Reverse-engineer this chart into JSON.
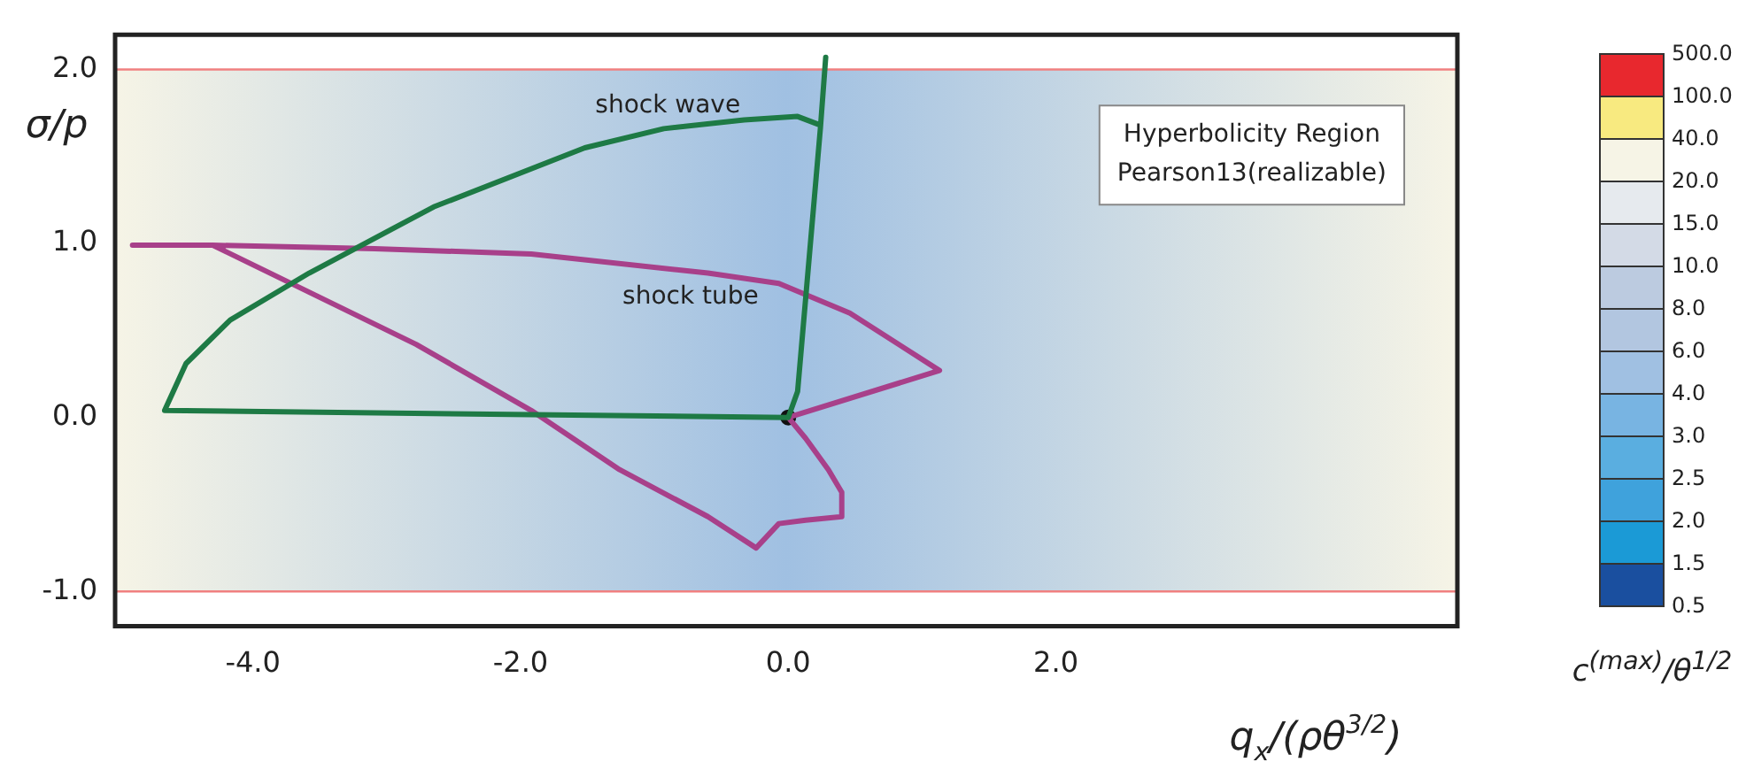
{
  "chart_data": [
    {
      "type": "line",
      "xlabel": "q$_{x}$/(ρθ$^{3/2}$)",
      "ylabel": "σ/p",
      "annotations": [
        "shock wave",
        "shock tube",
        "Hyperbolicity Region\nPearson13(realizable)"
      ],
      "series": [
        {
          "color": "#1e7a45",
          "x": [
            0.28,
            0.24,
            0.07,
            0,
            -4.66,
            -4.5,
            -4.17,
            -3.58,
            -2.65,
            -1.52,
            -0.93,
            -0.33,
            0.07,
            0.24
          ],
          "values": [
            2.07,
            1.66,
            0.15,
            0,
            0.04,
            0.31,
            0.56,
            0.83,
            1.21,
            1.55,
            1.66,
            1.71,
            1.73,
            1.68
          ]
        },
        {
          "color": "#a8408a",
          "x": [
            -4.9,
            -4.3,
            -3.09,
            -1.92,
            -0.6,
            -0.07,
            0.46,
            1.13,
            0,
            0.13,
            0.3,
            0.4,
            0.4,
            0.13,
            -0.07,
            -0.24,
            -0.6,
            -1.26,
            -1.92,
            -2.78,
            -3.58,
            -4.3
          ],
          "values": [
            0.99,
            0.99,
            0.97,
            0.94,
            0.83,
            0.77,
            0.6,
            0.27,
            0,
            -0.12,
            -0.3,
            -0.43,
            -0.57,
            -0.59,
            -0.61,
            -0.75,
            -0.57,
            -0.3,
            0.04,
            0.42,
            0.72,
            0.99
          ]
        },
        {
          "type": "scatter",
          "color": "#111111",
          "x": [
            0
          ],
          "values": [
            0
          ]
        }
      ],
      "bands": [
        {
          "axis": "y",
          "from": -1,
          "to": 2,
          "color": "#a0c0e2"
        }
      ],
      "ref_lines": [
        {
          "axis": "y",
          "value": -1,
          "color": "#f08080"
        },
        {
          "axis": "y",
          "value": 2,
          "color": "#f08080"
        }
      ],
      "xlim": [
        -5.03,
        5
      ],
      "ylim": [
        -1.2,
        2.2
      ],
      "xticks": [
        {
          "value": -4,
          "label": "-4.0"
        },
        {
          "value": -2,
          "label": "-2.0"
        },
        {
          "value": 0,
          "label": "0.0"
        },
        {
          "value": 2,
          "label": "2.0"
        }
      ],
      "yticks": [
        {
          "value": -1,
          "label": "-1.0"
        },
        {
          "value": 0,
          "label": "0.0"
        },
        {
          "value": 1,
          "label": "1.0"
        },
        {
          "value": 2,
          "label": "2.0"
        }
      ],
      "grid": false,
      "legend": false
    },
    {
      "type": "other",
      "clabel": "c$^{(max)}$/θ$^{1/2}$",
      "annotations": [
        "500.0",
        "100.0",
        "40.0",
        "20.0",
        "15.0",
        "10.0",
        "8.0",
        "6.0",
        "4.0",
        "3.0",
        "2.5",
        "2.0",
        "1.5",
        "0.5"
      ],
      "colors": [
        "#e8282e",
        "#f8ea80",
        "#f6f4e6",
        "#e6eaee",
        "#d3dae6",
        "#bccbe0",
        "#b2c6e0",
        "#a0c0e2",
        "#78b4e2",
        "#5aaee0",
        "#3fa2dc",
        "#1b9ad6",
        "#1a4f9f"
      ]
    }
  ]
}
